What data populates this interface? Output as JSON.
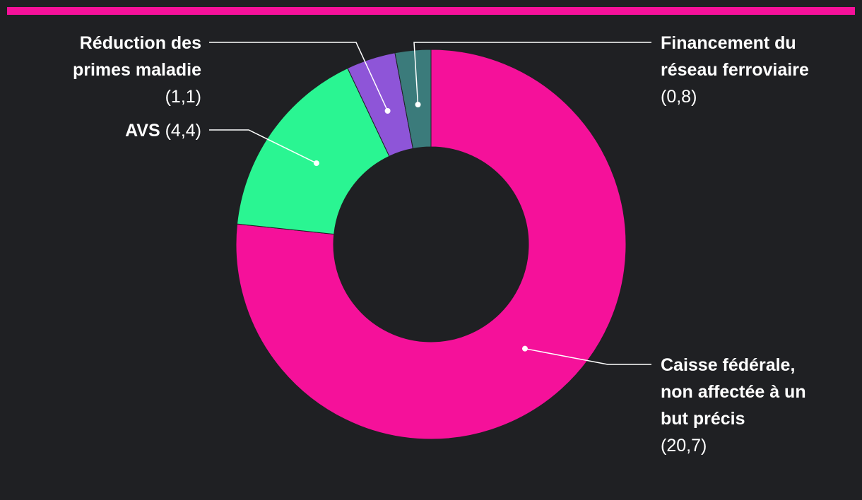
{
  "accent_color": "#f5119a",
  "chart_data": {
    "type": "pie",
    "donut": true,
    "slices": [
      {
        "label": "Caisse fédérale, non affectée à un but précis",
        "value": 20.7,
        "value_text": "(20,7)",
        "color": "#f5119a"
      },
      {
        "label": "AVS",
        "value": 4.4,
        "value_text": "(4,4)",
        "color": "#2af592"
      },
      {
        "label": "Réduction des primes maladie",
        "value": 1.1,
        "value_text": "(1,1)",
        "color": "#8e55d8"
      },
      {
        "label": "Financement du réseau ferroviaire",
        "value": 0.8,
        "value_text": "(0,8)",
        "color": "#3b7b7b"
      }
    ]
  }
}
